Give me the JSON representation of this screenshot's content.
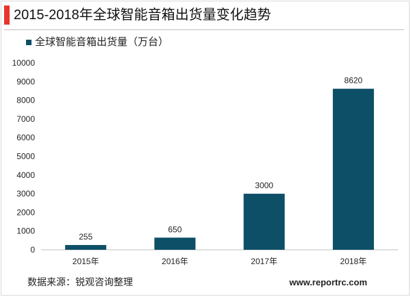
{
  "header": {
    "title": "2015-2018年全球智能音箱出货量变化趋势"
  },
  "footer": {
    "source": "数据来源：锐观咨询整理",
    "url": "www.reportrc.com"
  },
  "colors": {
    "accent": "#e8352b",
    "bar": "#0d4f66",
    "axis": "#bfbfbf",
    "text": "#222222"
  },
  "chart_data": {
    "type": "bar",
    "categories": [
      "2015年",
      "2016年",
      "2017年",
      "2018年"
    ],
    "series": [
      {
        "name": "全球智能音箱出货量（万台）",
        "values": [
          255,
          650,
          3000,
          8620
        ]
      }
    ],
    "data_labels": [
      "255",
      "650",
      "3000",
      "8620"
    ],
    "ylim": [
      0,
      10000
    ],
    "yticks": [
      0,
      1000,
      2000,
      3000,
      4000,
      5000,
      6000,
      7000,
      8000,
      9000,
      10000
    ],
    "grid": false,
    "legend_position": "top-left"
  }
}
